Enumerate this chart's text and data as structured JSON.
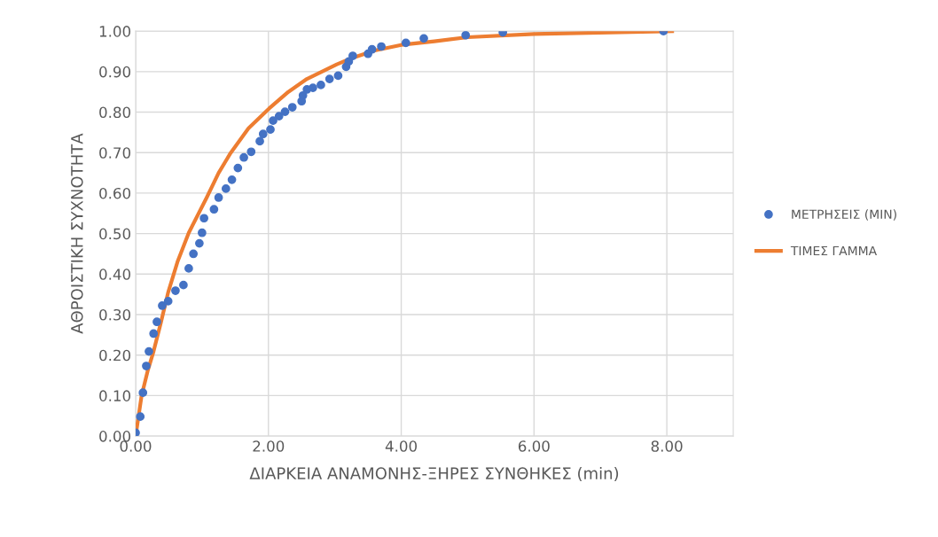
{
  "chart_data": {
    "type": "scatter",
    "xlabel": "ΔΙΑΡΚΕΙΑ ΑΝΑΜΟΝΗΣ-ΞΗΡΕΣ ΣΥΝΘΗΚΕΣ (min)",
    "ylabel": "ΑΘΡΟΙΣΤΙΚΗ ΣΥΧΝΟΤΗΤΑ",
    "series": [
      {
        "name": "ΜΕΤΡΗΣΕΙΣ (MIN)",
        "color": "#4472c4",
        "marker": "circle",
        "x": [
          0.0,
          0.07,
          0.11,
          0.16,
          0.2,
          0.27,
          0.32,
          0.4,
          0.49,
          0.6,
          0.72,
          0.8,
          0.87,
          0.96,
          1.0,
          1.03,
          1.18,
          1.25,
          1.36,
          1.45,
          1.54,
          1.63,
          1.74,
          1.87,
          1.92,
          2.03,
          2.07,
          2.16,
          2.25,
          2.36,
          2.5,
          2.52,
          2.58,
          2.67,
          2.79,
          2.92,
          3.05,
          3.17,
          3.21,
          3.27,
          3.5,
          3.56,
          3.7,
          4.07,
          4.34,
          4.97,
          5.53,
          7.95
        ],
        "values": [
          0.008,
          0.048,
          0.107,
          0.173,
          0.209,
          0.253,
          0.282,
          0.322,
          0.333,
          0.359,
          0.373,
          0.414,
          0.45,
          0.476,
          0.502,
          0.538,
          0.56,
          0.589,
          0.611,
          0.633,
          0.662,
          0.688,
          0.702,
          0.728,
          0.746,
          0.757,
          0.779,
          0.79,
          0.801,
          0.812,
          0.827,
          0.841,
          0.856,
          0.86,
          0.867,
          0.882,
          0.89,
          0.912,
          0.925,
          0.939,
          0.944,
          0.955,
          0.962,
          0.971,
          0.982,
          0.99,
          0.997,
          1.0
        ]
      },
      {
        "name": "ΤΙΜΕΣ ΓΑΜΜΑ",
        "type": "line",
        "color": "#ed7d31",
        "marker": "none",
        "line_style": "solid",
        "x": [
          0.0,
          0.09,
          0.18,
          0.27,
          0.38,
          0.49,
          0.63,
          0.8,
          1.07,
          1.25,
          1.43,
          1.7,
          2.01,
          2.3,
          2.58,
          3.03,
          3.25,
          3.6,
          4.0,
          4.5,
          5.0,
          6.0,
          8.08
        ],
        "values": [
          0.0,
          0.1,
          0.16,
          0.209,
          0.28,
          0.355,
          0.43,
          0.502,
          0.589,
          0.65,
          0.699,
          0.76,
          0.809,
          0.85,
          0.882,
          0.918,
          0.933,
          0.952,
          0.966,
          0.975,
          0.985,
          0.993,
          1.0
        ]
      }
    ],
    "xlim": [
      0,
      9
    ],
    "xticks": [
      {
        "value": 0,
        "label": "0.00"
      },
      {
        "value": 2,
        "label": "2.00"
      },
      {
        "value": 4,
        "label": "4.00"
      },
      {
        "value": 6,
        "label": "6.00"
      },
      {
        "value": 8,
        "label": "8.00"
      }
    ],
    "ylim": [
      0,
      1
    ],
    "yticks": [
      {
        "value": 0,
        "label": "0.00"
      },
      {
        "value": 0.1,
        "label": "0.10"
      },
      {
        "value": 0.2,
        "label": "0.20"
      },
      {
        "value": 0.3,
        "label": "0.30"
      },
      {
        "value": 0.4,
        "label": "0.40"
      },
      {
        "value": 0.5,
        "label": "0.50"
      },
      {
        "value": 0.6,
        "label": "0.60"
      },
      {
        "value": 0.7,
        "label": "0.70"
      },
      {
        "value": 0.8,
        "label": "0.80"
      },
      {
        "value": 0.9,
        "label": "0.90"
      },
      {
        "value": 1.0,
        "label": "1.00"
      }
    ],
    "grid": true,
    "legend": "right"
  }
}
